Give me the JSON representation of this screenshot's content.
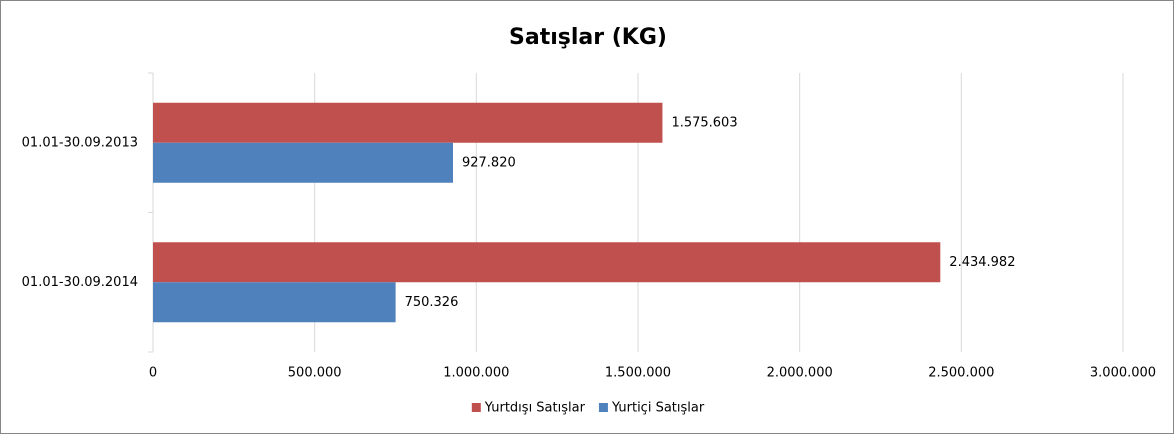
{
  "chart_data": {
    "type": "hbar",
    "title": "Satışlar (KG)",
    "categories": [
      "01.01-30.09.2013",
      "01.01-30.09.2014"
    ],
    "series": [
      {
        "name": "Yurtdışı Satışlar",
        "color": "#c0504d",
        "values": [
          1575603,
          2434982
        ],
        "value_labels": [
          "1.575.603",
          "2.434.982"
        ]
      },
      {
        "name": "Yurtiçi Satışlar",
        "color": "#4f81bd",
        "values": [
          927820,
          750326
        ],
        "value_labels": [
          "927.820",
          "750.326"
        ]
      }
    ],
    "xlim": [
      0,
      3000000
    ],
    "xticks": [
      0,
      {
        "value": 500000,
        "label": "500.000"
      },
      {
        "value": 1000000,
        "label": "1.000.000"
      },
      {
        "value": 1500000,
        "label": "1.500.000"
      },
      {
        "value": 2000000,
        "label": "2.000.000"
      },
      {
        "value": 2500000,
        "label": "2.500.000"
      },
      {
        "value": 3000000,
        "label": "3.000.000"
      }
    ],
    "grid": true,
    "legend": "bottom"
  }
}
